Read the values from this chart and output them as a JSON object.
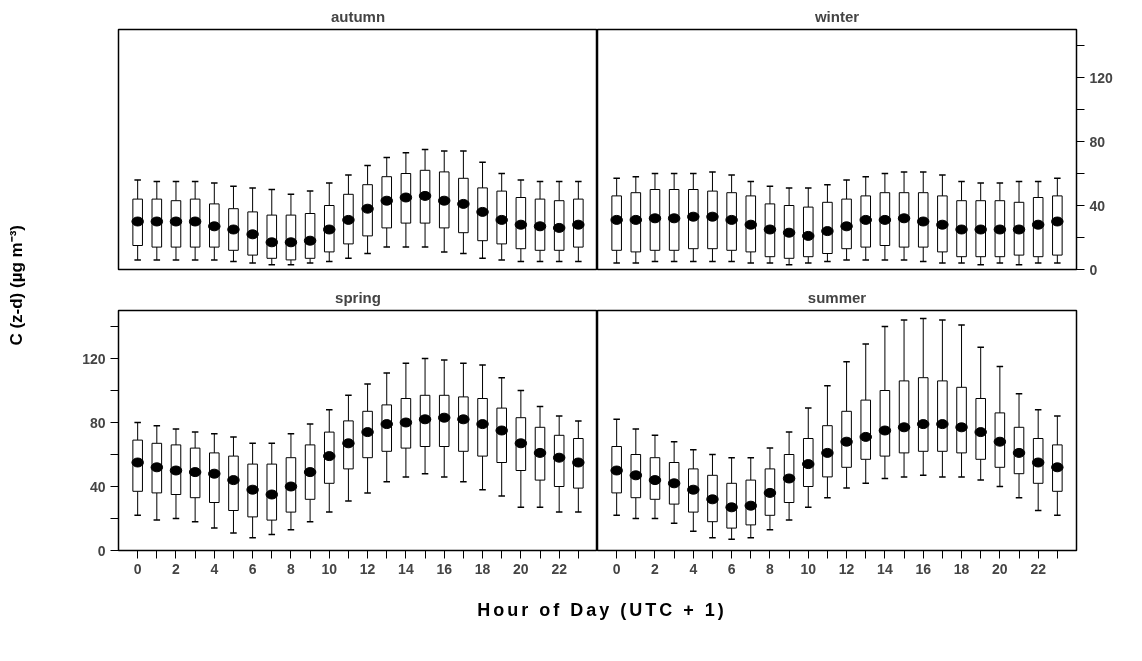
{
  "chart_data": [
    {
      "type": "box",
      "title": "autumn",
      "x": [
        0,
        1,
        2,
        3,
        4,
        5,
        6,
        7,
        8,
        9,
        10,
        11,
        12,
        13,
        14,
        15,
        16,
        17,
        18,
        19,
        20,
        21,
        22,
        23
      ],
      "xlim": [
        -1,
        24
      ],
      "ylim": [
        0,
        150
      ],
      "tick_labels": false,
      "series": [
        {
          "color": "#000000",
          "boxes": [
            {
              "low": 6,
              "q1": 15,
              "median": 30,
              "q3": 44,
              "high": 56
            },
            {
              "low": 6,
              "q1": 14,
              "median": 30,
              "q3": 44,
              "high": 55
            },
            {
              "low": 6,
              "q1": 14,
              "median": 30,
              "q3": 43,
              "high": 55
            },
            {
              "low": 6,
              "q1": 14,
              "median": 30,
              "q3": 44,
              "high": 55
            },
            {
              "low": 6,
              "q1": 14,
              "median": 27,
              "q3": 41,
              "high": 54
            },
            {
              "low": 5,
              "q1": 12,
              "median": 25,
              "q3": 38,
              "high": 52
            },
            {
              "low": 4,
              "q1": 9,
              "median": 22,
              "q3": 36,
              "high": 51
            },
            {
              "low": 3,
              "q1": 7,
              "median": 17,
              "q3": 34,
              "high": 50
            },
            {
              "low": 3,
              "q1": 6,
              "median": 17,
              "q3": 34,
              "high": 47
            },
            {
              "low": 4,
              "q1": 7,
              "median": 18,
              "q3": 35,
              "high": 49
            },
            {
              "low": 5,
              "q1": 11,
              "median": 25,
              "q3": 40,
              "high": 54
            },
            {
              "low": 7,
              "q1": 16,
              "median": 31,
              "q3": 47,
              "high": 59
            },
            {
              "low": 10,
              "q1": 21,
              "median": 38,
              "q3": 53,
              "high": 65
            },
            {
              "low": 14,
              "q1": 26,
              "median": 43,
              "q3": 58,
              "high": 70
            },
            {
              "low": 14,
              "q1": 29,
              "median": 45,
              "q3": 60,
              "high": 73
            },
            {
              "low": 14,
              "q1": 29,
              "median": 46,
              "q3": 62,
              "high": 75
            },
            {
              "low": 11,
              "q1": 26,
              "median": 43,
              "q3": 61,
              "high": 74
            },
            {
              "low": 10,
              "q1": 23,
              "median": 41,
              "q3": 57,
              "high": 74
            },
            {
              "low": 7,
              "q1": 18,
              "median": 36,
              "q3": 51,
              "high": 67
            },
            {
              "low": 6,
              "q1": 16,
              "median": 31,
              "q3": 49,
              "high": 60
            },
            {
              "low": 5,
              "q1": 13,
              "median": 28,
              "q3": 45,
              "high": 56
            },
            {
              "low": 5,
              "q1": 12,
              "median": 27,
              "q3": 44,
              "high": 55
            },
            {
              "low": 5,
              "q1": 12,
              "median": 26,
              "q3": 43,
              "high": 55
            },
            {
              "low": 5,
              "q1": 14,
              "median": 28,
              "q3": 44,
              "high": 55
            }
          ]
        }
      ]
    },
    {
      "type": "box",
      "title": "winter",
      "x": [
        0,
        1,
        2,
        3,
        4,
        5,
        6,
        7,
        8,
        9,
        10,
        11,
        12,
        13,
        14,
        15,
        16,
        17,
        18,
        19,
        20,
        21,
        22,
        23
      ],
      "xlim": [
        -1,
        24
      ],
      "ylim": [
        0,
        150
      ],
      "yticks": [
        0,
        {
          "value": 20,
          "label": null
        },
        40,
        {
          "value": 60,
          "label": null
        },
        80,
        {
          "value": 100,
          "label": null
        },
        120,
        {
          "value": 140,
          "label": null
        }
      ],
      "tick_labels": "y",
      "series": [
        {
          "color": "#000000",
          "boxes": [
            {
              "low": 4,
              "q1": 12,
              "median": 31,
              "q3": 46,
              "high": 57
            },
            {
              "low": 4,
              "q1": 11,
              "median": 31,
              "q3": 48,
              "high": 58
            },
            {
              "low": 5,
              "q1": 12,
              "median": 32,
              "q3": 50,
              "high": 60
            },
            {
              "low": 5,
              "q1": 12,
              "median": 32,
              "q3": 50,
              "high": 60
            },
            {
              "low": 5,
              "q1": 13,
              "median": 33,
              "q3": 50,
              "high": 60
            },
            {
              "low": 5,
              "q1": 13,
              "median": 33,
              "q3": 49,
              "high": 61
            },
            {
              "low": 5,
              "q1": 12,
              "median": 31,
              "q3": 48,
              "high": 59
            },
            {
              "low": 4,
              "q1": 11,
              "median": 28,
              "q3": 46,
              "high": 55
            },
            {
              "low": 4,
              "q1": 8,
              "median": 25,
              "q3": 41,
              "high": 52
            },
            {
              "low": 3,
              "q1": 7,
              "median": 23,
              "q3": 40,
              "high": 51
            },
            {
              "low": 4,
              "q1": 8,
              "median": 21,
              "q3": 39,
              "high": 51
            },
            {
              "low": 5,
              "q1": 10,
              "median": 24,
              "q3": 42,
              "high": 53
            },
            {
              "low": 6,
              "q1": 13,
              "median": 27,
              "q3": 44,
              "high": 56
            },
            {
              "low": 6,
              "q1": 14,
              "median": 31,
              "q3": 46,
              "high": 58
            },
            {
              "low": 6,
              "q1": 15,
              "median": 31,
              "q3": 48,
              "high": 60
            },
            {
              "low": 6,
              "q1": 14,
              "median": 32,
              "q3": 48,
              "high": 61
            },
            {
              "low": 5,
              "q1": 14,
              "median": 30,
              "q3": 48,
              "high": 61
            },
            {
              "low": 4,
              "q1": 11,
              "median": 28,
              "q3": 46,
              "high": 59
            },
            {
              "low": 4,
              "q1": 8,
              "median": 25,
              "q3": 43,
              "high": 55
            },
            {
              "low": 3,
              "q1": 8,
              "median": 25,
              "q3": 43,
              "high": 54
            },
            {
              "low": 4,
              "q1": 8,
              "median": 25,
              "q3": 43,
              "high": 54
            },
            {
              "low": 3,
              "q1": 9,
              "median": 25,
              "q3": 42,
              "high": 55
            },
            {
              "low": 4,
              "q1": 8,
              "median": 28,
              "q3": 45,
              "high": 55
            },
            {
              "low": 4,
              "q1": 9,
              "median": 30,
              "q3": 46,
              "high": 57
            }
          ]
        }
      ]
    },
    {
      "type": "box",
      "title": "spring",
      "xlabel": "Hour of Day (UTC + 1)",
      "ylabel": "C (z-d) (µg m⁻³)",
      "x": [
        0,
        1,
        2,
        3,
        4,
        5,
        6,
        7,
        8,
        9,
        10,
        11,
        12,
        13,
        14,
        15,
        16,
        17,
        18,
        19,
        20,
        21,
        22,
        23
      ],
      "xlim": [
        -1,
        24
      ],
      "ylim": [
        0,
        150
      ],
      "xticks": [
        0,
        {
          "value": 1,
          "label": null
        },
        2,
        {
          "value": 3,
          "label": null
        },
        4,
        {
          "value": 5,
          "label": null
        },
        6,
        {
          "value": 7,
          "label": null
        },
        8,
        {
          "value": 9,
          "label": null
        },
        10,
        {
          "value": 11,
          "label": null
        },
        12,
        {
          "value": 13,
          "label": null
        },
        14,
        {
          "value": 15,
          "label": null
        },
        16,
        {
          "value": 17,
          "label": null
        },
        18,
        {
          "value": 19,
          "label": null
        },
        20,
        {
          "value": 21,
          "label": null
        },
        22,
        {
          "value": 23,
          "label": null
        }
      ],
      "yticks": [
        0,
        {
          "value": 20,
          "label": null
        },
        40,
        {
          "value": 60,
          "label": null
        },
        80,
        {
          "value": 100,
          "label": null
        },
        120,
        {
          "value": 140,
          "label": null
        }
      ],
      "series": [
        {
          "color": "#000000",
          "boxes": [
            {
              "low": 22,
              "q1": 37,
              "median": 55,
              "q3": 69,
              "high": 80
            },
            {
              "low": 19,
              "q1": 36,
              "median": 52,
              "q3": 67,
              "high": 78
            },
            {
              "low": 20,
              "q1": 35,
              "median": 50,
              "q3": 66,
              "high": 76
            },
            {
              "low": 18,
              "q1": 33,
              "median": 49,
              "q3": 64,
              "high": 74
            },
            {
              "low": 14,
              "q1": 30,
              "median": 48,
              "q3": 61,
              "high": 73
            },
            {
              "low": 11,
              "q1": 25,
              "median": 44,
              "q3": 59,
              "high": 71
            },
            {
              "low": 8,
              "q1": 21,
              "median": 38,
              "q3": 54,
              "high": 67
            },
            {
              "low": 10,
              "q1": 19,
              "median": 35,
              "q3": 54,
              "high": 67
            },
            {
              "low": 13,
              "q1": 24,
              "median": 40,
              "q3": 58,
              "high": 73
            },
            {
              "low": 18,
              "q1": 32,
              "median": 49,
              "q3": 66,
              "high": 79
            },
            {
              "low": 24,
              "q1": 42,
              "median": 59,
              "q3": 74,
              "high": 88
            },
            {
              "low": 31,
              "q1": 51,
              "median": 67,
              "q3": 81,
              "high": 97
            },
            {
              "low": 36,
              "q1": 58,
              "median": 74,
              "q3": 87,
              "high": 104
            },
            {
              "low": 43,
              "q1": 62,
              "median": 79,
              "q3": 91,
              "high": 111
            },
            {
              "low": 46,
              "q1": 64,
              "median": 80,
              "q3": 95,
              "high": 117
            },
            {
              "low": 48,
              "q1": 65,
              "median": 82,
              "q3": 97,
              "high": 120
            },
            {
              "low": 46,
              "q1": 65,
              "median": 83,
              "q3": 97,
              "high": 119
            },
            {
              "low": 43,
              "q1": 62,
              "median": 82,
              "q3": 96,
              "high": 117
            },
            {
              "low": 38,
              "q1": 59,
              "median": 79,
              "q3": 95,
              "high": 116
            },
            {
              "low": 34,
              "q1": 55,
              "median": 75,
              "q3": 89,
              "high": 108
            },
            {
              "low": 27,
              "q1": 50,
              "median": 67,
              "q3": 83,
              "high": 100
            },
            {
              "low": 27,
              "q1": 44,
              "median": 61,
              "q3": 77,
              "high": 90
            },
            {
              "low": 24,
              "q1": 40,
              "median": 58,
              "q3": 72,
              "high": 84
            },
            {
              "low": 24,
              "q1": 39,
              "median": 55,
              "q3": 70,
              "high": 81
            }
          ]
        }
      ]
    },
    {
      "type": "box",
      "title": "summer",
      "x": [
        0,
        1,
        2,
        3,
        4,
        5,
        6,
        7,
        8,
        9,
        10,
        11,
        12,
        13,
        14,
        15,
        16,
        17,
        18,
        19,
        20,
        21,
        22,
        23
      ],
      "xlim": [
        -1,
        24
      ],
      "ylim": [
        0,
        150
      ],
      "xticks": [
        0,
        {
          "value": 1,
          "label": null
        },
        2,
        {
          "value": 3,
          "label": null
        },
        4,
        {
          "value": 5,
          "label": null
        },
        6,
        {
          "value": 7,
          "label": null
        },
        8,
        {
          "value": 9,
          "label": null
        },
        10,
        {
          "value": 11,
          "label": null
        },
        12,
        {
          "value": 13,
          "label": null
        },
        14,
        {
          "value": 15,
          "label": null
        },
        16,
        {
          "value": 17,
          "label": null
        },
        18,
        {
          "value": 19,
          "label": null
        },
        20,
        {
          "value": 21,
          "label": null
        },
        22,
        {
          "value": 23,
          "label": null
        }
      ],
      "tick_labels": "x",
      "series": [
        {
          "color": "#000000",
          "boxes": [
            {
              "low": 22,
              "q1": 36,
              "median": 50,
              "q3": 65,
              "high": 82
            },
            {
              "low": 20,
              "q1": 33,
              "median": 47,
              "q3": 60,
              "high": 76
            },
            {
              "low": 20,
              "q1": 32,
              "median": 44,
              "q3": 58,
              "high": 72
            },
            {
              "low": 17,
              "q1": 29,
              "median": 42,
              "q3": 55,
              "high": 68
            },
            {
              "low": 12,
              "q1": 24,
              "median": 38,
              "q3": 51,
              "high": 63
            },
            {
              "low": 8,
              "q1": 18,
              "median": 32,
              "q3": 47,
              "high": 60
            },
            {
              "low": 7,
              "q1": 14,
              "median": 27,
              "q3": 42,
              "high": 58
            },
            {
              "low": 8,
              "q1": 16,
              "median": 28,
              "q3": 44,
              "high": 58
            },
            {
              "low": 13,
              "q1": 22,
              "median": 36,
              "q3": 51,
              "high": 64
            },
            {
              "low": 19,
              "q1": 30,
              "median": 45,
              "q3": 60,
              "high": 74
            },
            {
              "low": 27,
              "q1": 40,
              "median": 54,
              "q3": 70,
              "high": 89
            },
            {
              "low": 33,
              "q1": 46,
              "median": 61,
              "q3": 78,
              "high": 103
            },
            {
              "low": 39,
              "q1": 52,
              "median": 68,
              "q3": 87,
              "high": 118
            },
            {
              "low": 42,
              "q1": 57,
              "median": 71,
              "q3": 94,
              "high": 129
            },
            {
              "low": 45,
              "q1": 59,
              "median": 75,
              "q3": 100,
              "high": 140
            },
            {
              "low": 46,
              "q1": 61,
              "median": 77,
              "q3": 106,
              "high": 144
            },
            {
              "low": 47,
              "q1": 62,
              "median": 79,
              "q3": 108,
              "high": 145
            },
            {
              "low": 46,
              "q1": 62,
              "median": 79,
              "q3": 106,
              "high": 144
            },
            {
              "low": 46,
              "q1": 61,
              "median": 77,
              "q3": 102,
              "high": 141
            },
            {
              "low": 44,
              "q1": 57,
              "median": 74,
              "q3": 95,
              "high": 127
            },
            {
              "low": 40,
              "q1": 52,
              "median": 68,
              "q3": 86,
              "high": 115
            },
            {
              "low": 33,
              "q1": 48,
              "median": 61,
              "q3": 77,
              "high": 98
            },
            {
              "low": 25,
              "q1": 42,
              "median": 55,
              "q3": 70,
              "high": 88
            },
            {
              "low": 22,
              "q1": 37,
              "median": 52,
              "q3": 66,
              "high": 84
            }
          ]
        }
      ]
    }
  ]
}
